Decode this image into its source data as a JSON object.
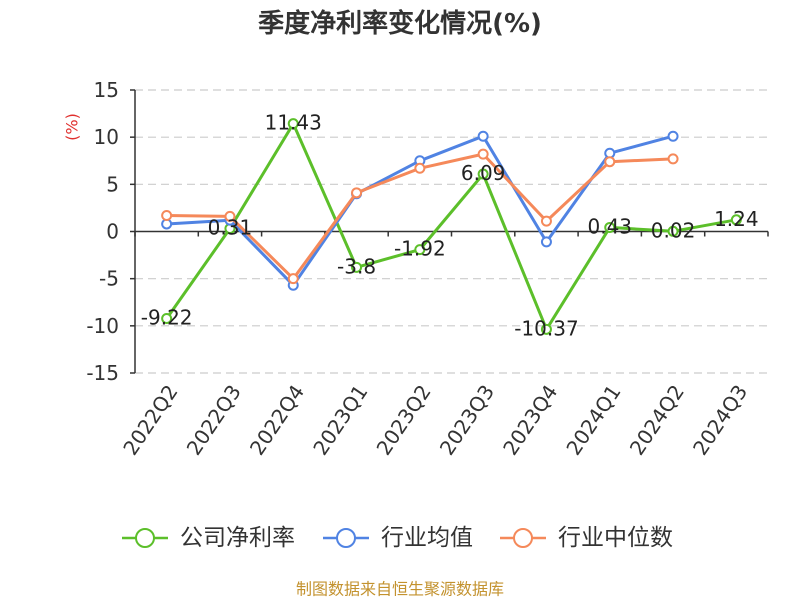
{
  "footer": "制图数据来自恒生聚源数据库",
  "colors": {
    "ylabel": "#e0302e",
    "footer": "#c3922e"
  },
  "chart_data": {
    "type": "line",
    "title": "季度净利率变化情况(%)",
    "xlabel": "",
    "ylabel": "(%)",
    "categories": [
      "2022Q2",
      "2022Q3",
      "2022Q4",
      "2023Q1",
      "2023Q2",
      "2023Q3",
      "2023Q4",
      "2024Q1",
      "2024Q2",
      "2024Q3"
    ],
    "ylim": [
      -15,
      15
    ],
    "yticks": [
      15,
      10,
      5,
      0,
      -5,
      -10,
      -15
    ],
    "grid": true,
    "legend": "bottom",
    "series": [
      {
        "name": "公司净利率",
        "color": "#5cbf2a",
        "show_labels": true,
        "values": [
          -9.22,
          0.31,
          11.43,
          -3.8,
          -1.92,
          6.09,
          -10.37,
          0.43,
          0.02,
          1.24
        ]
      },
      {
        "name": "行业均值",
        "color": "#5083e3",
        "values": [
          0.8,
          1.2,
          -5.7,
          4.0,
          7.5,
          10.1,
          -1.1,
          8.3,
          10.1,
          null
        ]
      },
      {
        "name": "行业中位数",
        "color": "#f5895a",
        "values": [
          1.7,
          1.6,
          -5.0,
          4.1,
          6.7,
          8.2,
          1.1,
          7.4,
          7.7,
          null
        ]
      }
    ]
  }
}
